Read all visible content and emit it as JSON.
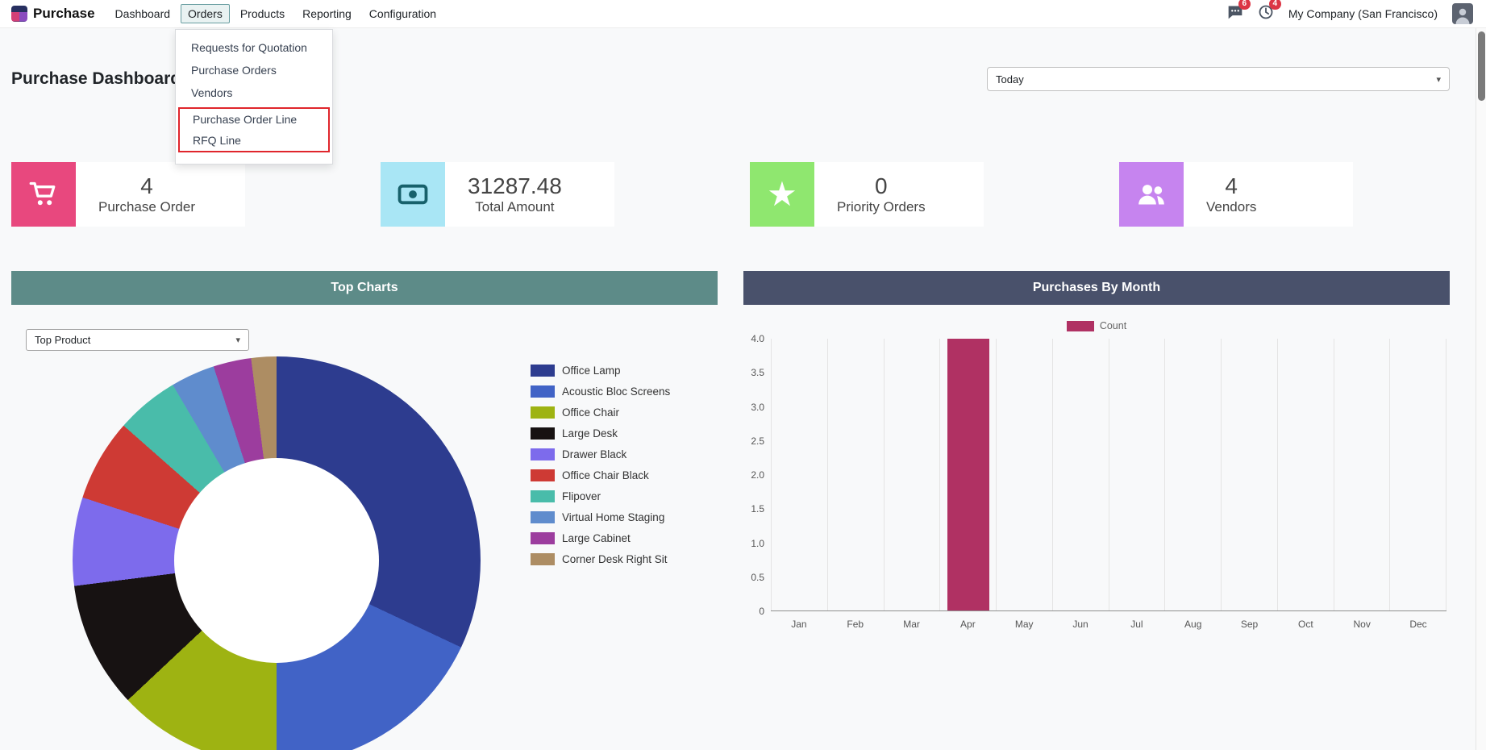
{
  "nav": {
    "brand": "Purchase",
    "items": [
      {
        "label": "Dashboard",
        "active": false
      },
      {
        "label": "Orders",
        "active": true
      },
      {
        "label": "Products",
        "active": false
      },
      {
        "label": "Reporting",
        "active": false
      },
      {
        "label": "Configuration",
        "active": false
      }
    ],
    "systray": {
      "messages_badge": "6",
      "activities_badge": "4",
      "badge_color": "#dc3545",
      "company": "My Company (San Francisco)"
    }
  },
  "orders_menu": {
    "items": [
      "Requests for Quotation",
      "Purchase Orders",
      "Vendors"
    ],
    "highlighted_items": [
      "Purchase Order Line",
      "RFQ Line"
    ],
    "highlight_color": "#e0262c"
  },
  "page": {
    "title": "Purchase Dashboard",
    "period_filter": {
      "value": "Today"
    }
  },
  "kpis": [
    {
      "value": "4",
      "label": "Purchase Order",
      "icon": "cart-icon",
      "color": "#e8487e"
    },
    {
      "value": "31287.48",
      "label": "Total Amount",
      "icon": "money-icon",
      "color": "#a9e6f5"
    },
    {
      "value": "0",
      "label": "Priority Orders",
      "icon": "star-icon",
      "color": "#8fe76f"
    },
    {
      "value": "4",
      "label": "Vendors",
      "icon": "users-icon",
      "color": "#c684ef"
    }
  ],
  "charts": {
    "top_charts": {
      "title": "Top Charts",
      "header_color": "#5d8b88",
      "selector": {
        "value": "Top Product"
      }
    },
    "purchases_by_month": {
      "title": "Purchases By Month",
      "header_color": "#49516b"
    }
  },
  "chart_data": [
    {
      "type": "pie",
      "title": "Top Product",
      "donut": true,
      "legend_position": "right",
      "labels": [
        "Office Lamp",
        "Acoustic Bloc Screens",
        "Office Chair",
        "Large Desk",
        "Drawer Black",
        "Office Chair Black",
        "Flipover",
        "Virtual Home Staging",
        "Large Cabinet",
        "Corner Desk Right Sit"
      ],
      "values": [
        32,
        18,
        13,
        10,
        7,
        6.5,
        5,
        3.5,
        3,
        2
      ],
      "colors": [
        "#2d3c8f",
        "#4163c6",
        "#9eb312",
        "#171212",
        "#7d6bec",
        "#ce3a34",
        "#49bcaa",
        "#5f8ccd",
        "#9c3d9e",
        "#ad8d63"
      ]
    },
    {
      "type": "bar",
      "title": "Purchases By Month",
      "series_name": "Count",
      "categories": [
        "Jan",
        "Feb",
        "Mar",
        "Apr",
        "May",
        "Jun",
        "Jul",
        "Aug",
        "Sep",
        "Oct",
        "Nov",
        "Dec"
      ],
      "values": [
        0,
        0,
        0,
        4,
        0,
        0,
        0,
        0,
        0,
        0,
        0,
        0
      ],
      "ylim": [
        0,
        4
      ],
      "yticks": [
        "4.0",
        "3.5",
        "3.0",
        "2.5",
        "2.0",
        "1.5",
        "1.0",
        "0.5",
        "0"
      ],
      "bar_color": "#b03163",
      "grid": "vertical",
      "legend_position": "top"
    }
  ]
}
